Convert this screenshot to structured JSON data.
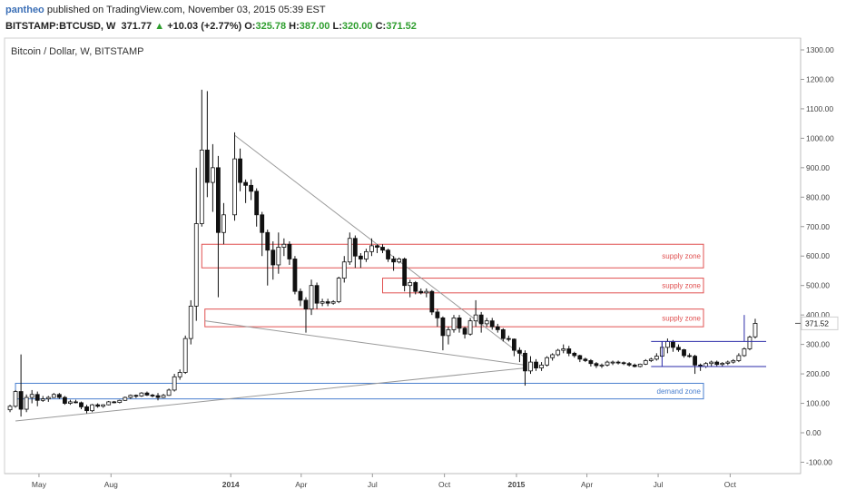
{
  "header": {
    "user": "pantheo",
    "published_text": "published on TradingView.com, November 03, 2015 05:39 EST",
    "symbol": "BITSTAMP:BTCUSD, W",
    "last": "371.77",
    "change_arrow": "▲",
    "change": "+10.03 (+2.77%)",
    "o_label": "O:",
    "o_value": "325.78",
    "h_label": "H:",
    "h_value": "387.00",
    "l_label": "L:",
    "l_value": "320.00",
    "c_label": "C:",
    "c_value": "371.52"
  },
  "colors": {
    "supply": "#e05050",
    "demand": "#4a7fcf",
    "trendline": "#9a9a9a",
    "box": "#2a2aa8",
    "price_label_bg": "#ffffff"
  },
  "chart_data": {
    "type": "candlestick",
    "title": "Bitcoin / Dollar, W, BITSTAMP",
    "x_tick_labels": [
      "May",
      "Aug",
      "2014",
      "Apr",
      "Jul",
      "Oct",
      "2015",
      "Apr",
      "Jul",
      "Oct"
    ],
    "y_tick_labels": [
      "-100.00",
      "0.00",
      "100.00",
      "200.00",
      "300.00",
      "400.00",
      "500.00",
      "600.00",
      "700.00",
      "800.00",
      "900.00",
      "1000.00",
      "1100.00",
      "1200.00",
      "1300.00"
    ],
    "ylim": [
      -140,
      1340
    ],
    "last_price_label": "371.52",
    "zones": [
      {
        "label": "supply zone",
        "kind": "supply",
        "y_low": 560,
        "y_high": 640,
        "x_start": "2013-11-25"
      },
      {
        "label": "supply zone",
        "kind": "supply",
        "y_low": 475,
        "y_high": 525,
        "x_start": "2014-07-14"
      },
      {
        "label": "supply zone",
        "kind": "supply",
        "y_low": 360,
        "y_high": 420,
        "x_start": "2013-11-29"
      },
      {
        "label": "demand zone",
        "kind": "demand",
        "y_low": 115,
        "y_high": 168,
        "x_start": "2013-04-01"
      }
    ],
    "candles": [
      [
        "2013-03-25",
        78,
        95,
        70,
        90
      ],
      [
        "2013-04-01",
        90,
        145,
        85,
        140
      ],
      [
        "2013-04-08",
        140,
        266,
        55,
        80
      ],
      [
        "2013-04-15",
        80,
        130,
        70,
        120
      ],
      [
        "2013-04-22",
        120,
        145,
        100,
        130
      ],
      [
        "2013-04-29",
        130,
        140,
        90,
        110
      ],
      [
        "2013-05-06",
        110,
        125,
        105,
        115
      ],
      [
        "2013-05-13",
        115,
        125,
        105,
        120
      ],
      [
        "2013-05-20",
        120,
        135,
        118,
        130
      ],
      [
        "2013-05-27",
        130,
        135,
        115,
        120
      ],
      [
        "2013-06-03",
        120,
        125,
        95,
        100
      ],
      [
        "2013-06-10",
        100,
        112,
        95,
        105
      ],
      [
        "2013-06-17",
        105,
        112,
        100,
        102
      ],
      [
        "2013-06-24",
        102,
        106,
        80,
        88
      ],
      [
        "2013-07-01",
        88,
        95,
        66,
        75
      ],
      [
        "2013-07-08",
        75,
        98,
        70,
        95
      ],
      [
        "2013-07-15",
        95,
        100,
        85,
        90
      ],
      [
        "2013-07-22",
        90,
        97,
        85,
        95
      ],
      [
        "2013-07-29",
        95,
        108,
        93,
        105
      ],
      [
        "2013-08-05",
        105,
        108,
        100,
        103
      ],
      [
        "2013-08-12",
        103,
        112,
        100,
        110
      ],
      [
        "2013-08-19",
        110,
        123,
        108,
        120
      ],
      [
        "2013-08-26",
        120,
        130,
        115,
        127
      ],
      [
        "2013-09-02",
        127,
        130,
        118,
        125
      ],
      [
        "2013-09-09",
        125,
        138,
        122,
        135
      ],
      [
        "2013-09-16",
        135,
        140,
        125,
        128
      ],
      [
        "2013-09-23",
        128,
        132,
        120,
        126
      ],
      [
        "2013-09-30",
        126,
        135,
        110,
        120
      ],
      [
        "2013-10-07",
        120,
        132,
        118,
        127
      ],
      [
        "2013-10-14",
        127,
        150,
        125,
        145
      ],
      [
        "2013-10-21",
        145,
        200,
        140,
        190
      ],
      [
        "2013-10-28",
        190,
        215,
        180,
        205
      ],
      [
        "2013-11-04",
        205,
        330,
        200,
        320
      ],
      [
        "2013-11-11",
        320,
        450,
        300,
        430
      ],
      [
        "2013-11-18",
        430,
        900,
        380,
        710
      ],
      [
        "2013-11-25",
        710,
        1165,
        700,
        960
      ],
      [
        "2013-12-02",
        960,
        1160,
        800,
        850
      ],
      [
        "2013-12-09",
        850,
        980,
        750,
        900
      ],
      [
        "2013-12-16",
        900,
        940,
        460,
        680
      ],
      [
        "2013-12-23",
        680,
        780,
        640,
        740
      ],
      [
        "2014-01-06",
        740,
        1020,
        720,
        930
      ],
      [
        "2014-01-13",
        930,
        965,
        820,
        850
      ],
      [
        "2014-01-20",
        850,
        860,
        780,
        840
      ],
      [
        "2014-01-27",
        840,
        860,
        790,
        820
      ],
      [
        "2014-02-03",
        820,
        830,
        700,
        740
      ],
      [
        "2014-02-10",
        740,
        750,
        600,
        680
      ],
      [
        "2014-02-17",
        680,
        690,
        500,
        620
      ],
      [
        "2014-02-24",
        620,
        650,
        520,
        570
      ],
      [
        "2014-03-03",
        570,
        680,
        540,
        630
      ],
      [
        "2014-03-10",
        630,
        660,
        600,
        640
      ],
      [
        "2014-03-17",
        640,
        650,
        570,
        590
      ],
      [
        "2014-03-24",
        590,
        600,
        470,
        480
      ],
      [
        "2014-03-31",
        480,
        490,
        430,
        450
      ],
      [
        "2014-04-07",
        450,
        460,
        340,
        420
      ],
      [
        "2014-04-14",
        420,
        520,
        400,
        500
      ],
      [
        "2014-04-21",
        500,
        510,
        420,
        440
      ],
      [
        "2014-04-28",
        440,
        455,
        430,
        445
      ],
      [
        "2014-05-05",
        445,
        455,
        430,
        440
      ],
      [
        "2014-05-12",
        440,
        450,
        435,
        445
      ],
      [
        "2014-05-19",
        445,
        530,
        440,
        525
      ],
      [
        "2014-05-26",
        525,
        600,
        510,
        580
      ],
      [
        "2014-06-02",
        580,
        680,
        570,
        660
      ],
      [
        "2014-06-09",
        660,
        670,
        560,
        600
      ],
      [
        "2014-06-16",
        600,
        610,
        560,
        590
      ],
      [
        "2014-06-23",
        590,
        625,
        580,
        615
      ],
      [
        "2014-06-30",
        615,
        660,
        600,
        635
      ],
      [
        "2014-07-07",
        635,
        640,
        610,
        630
      ],
      [
        "2014-07-14",
        630,
        640,
        610,
        620
      ],
      [
        "2014-07-21",
        620,
        625,
        580,
        590
      ],
      [
        "2014-07-28",
        590,
        600,
        550,
        580
      ],
      [
        "2014-08-04",
        580,
        595,
        575,
        590
      ],
      [
        "2014-08-11",
        590,
        595,
        480,
        500
      ],
      [
        "2014-08-18",
        500,
        520,
        460,
        510
      ],
      [
        "2014-08-25",
        510,
        515,
        470,
        480
      ],
      [
        "2014-09-01",
        480,
        490,
        470,
        475
      ],
      [
        "2014-09-08",
        475,
        490,
        460,
        480
      ],
      [
        "2014-09-15",
        480,
        485,
        400,
        410
      ],
      [
        "2014-09-22",
        410,
        420,
        360,
        390
      ],
      [
        "2014-09-29",
        390,
        395,
        280,
        330
      ],
      [
        "2014-10-06",
        330,
        360,
        300,
        350
      ],
      [
        "2014-10-13",
        350,
        400,
        340,
        390
      ],
      [
        "2014-10-20",
        390,
        400,
        340,
        355
      ],
      [
        "2014-10-27",
        355,
        360,
        320,
        335
      ],
      [
        "2014-11-03",
        335,
        390,
        330,
        380
      ],
      [
        "2014-11-10",
        380,
        450,
        360,
        400
      ],
      [
        "2014-11-17",
        400,
        410,
        340,
        370
      ],
      [
        "2014-11-24",
        370,
        390,
        360,
        380
      ],
      [
        "2014-12-01",
        380,
        390,
        350,
        360
      ],
      [
        "2014-12-08",
        360,
        370,
        340,
        350
      ],
      [
        "2014-12-15",
        350,
        355,
        310,
        320
      ],
      [
        "2014-12-22",
        320,
        330,
        310,
        318
      ],
      [
        "2014-12-29",
        318,
        320,
        260,
        280
      ],
      [
        "2015-01-05",
        280,
        290,
        240,
        270
      ],
      [
        "2015-01-12",
        270,
        280,
        160,
        210
      ],
      [
        "2015-01-19",
        210,
        260,
        200,
        240
      ],
      [
        "2015-01-26",
        240,
        250,
        210,
        220
      ],
      [
        "2015-02-02",
        220,
        240,
        210,
        230
      ],
      [
        "2015-02-09",
        230,
        260,
        225,
        255
      ],
      [
        "2015-02-16",
        255,
        270,
        245,
        265
      ],
      [
        "2015-02-23",
        265,
        285,
        260,
        280
      ],
      [
        "2015-03-02",
        280,
        300,
        270,
        285
      ],
      [
        "2015-03-09",
        285,
        295,
        260,
        270
      ],
      [
        "2015-03-16",
        270,
        275,
        255,
        262
      ],
      [
        "2015-03-23",
        262,
        265,
        240,
        250
      ],
      [
        "2015-03-30",
        250,
        255,
        240,
        245
      ],
      [
        "2015-04-06",
        245,
        250,
        225,
        235
      ],
      [
        "2015-04-13",
        235,
        240,
        220,
        228
      ],
      [
        "2015-04-20",
        228,
        235,
        220,
        230
      ],
      [
        "2015-04-27",
        230,
        245,
        225,
        240
      ],
      [
        "2015-05-04",
        240,
        245,
        230,
        240
      ],
      [
        "2015-05-11",
        240,
        245,
        232,
        238
      ],
      [
        "2015-05-18",
        238,
        242,
        230,
        235
      ],
      [
        "2015-05-25",
        235,
        240,
        225,
        230
      ],
      [
        "2015-06-01",
        230,
        235,
        222,
        225
      ],
      [
        "2015-06-08",
        225,
        235,
        222,
        233
      ],
      [
        "2015-06-15",
        233,
        250,
        230,
        245
      ],
      [
        "2015-06-22",
        245,
        255,
        240,
        250
      ],
      [
        "2015-06-29",
        250,
        270,
        245,
        260
      ],
      [
        "2015-07-06",
        260,
        310,
        255,
        290
      ],
      [
        "2015-07-13",
        290,
        320,
        270,
        310
      ],
      [
        "2015-07-20",
        310,
        315,
        275,
        290
      ],
      [
        "2015-07-27",
        290,
        300,
        275,
        282
      ],
      [
        "2015-08-03",
        282,
        285,
        255,
        262
      ],
      [
        "2015-08-10",
        262,
        270,
        255,
        260
      ],
      [
        "2015-08-17",
        260,
        265,
        200,
        230
      ],
      [
        "2015-08-24",
        230,
        235,
        210,
        225
      ],
      [
        "2015-08-31",
        225,
        240,
        220,
        235
      ],
      [
        "2015-09-07",
        235,
        245,
        225,
        240
      ],
      [
        "2015-09-14",
        240,
        245,
        225,
        232
      ],
      [
        "2015-09-21",
        232,
        240,
        225,
        236
      ],
      [
        "2015-09-28",
        236,
        245,
        230,
        240
      ],
      [
        "2015-10-05",
        240,
        250,
        235,
        245
      ],
      [
        "2015-10-12",
        245,
        270,
        240,
        262
      ],
      [
        "2015-10-19",
        262,
        290,
        258,
        285
      ],
      [
        "2015-10-26",
        285,
        330,
        280,
        325
      ],
      [
        "2015-11-02",
        325.78,
        387,
        320,
        371.52
      ]
    ]
  }
}
